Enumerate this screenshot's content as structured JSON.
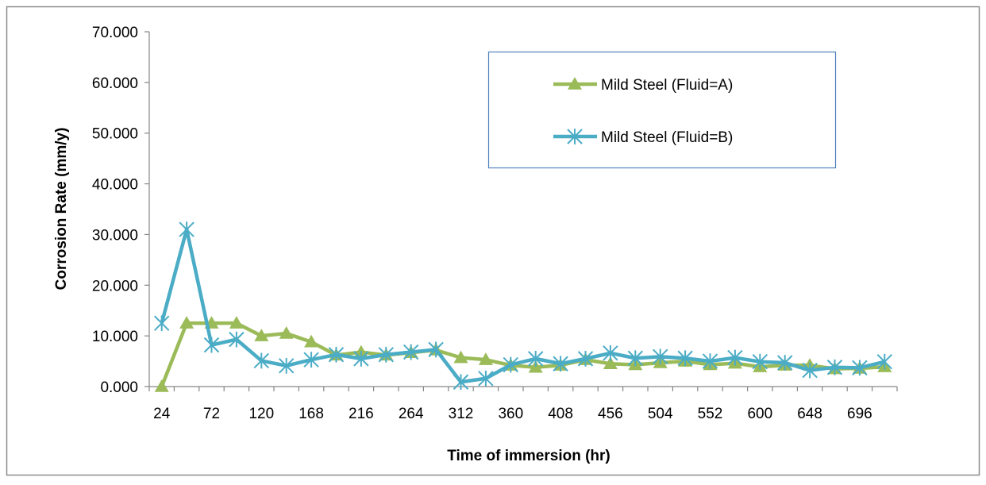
{
  "chart_data": {
    "type": "line",
    "title": "",
    "xlabel": "Time of immersion (hr)",
    "ylabel": "Corrosion Rate (mm/y)",
    "ylim": [
      0,
      70
    ],
    "y_ticks": [
      "0.000",
      "10.000",
      "20.000",
      "30.000",
      "40.000",
      "50.000",
      "60.000",
      "70.000"
    ],
    "x_tick_labels": [
      "24",
      "72",
      "120",
      "168",
      "216",
      "264",
      "312",
      "360",
      "408",
      "456",
      "504",
      "552",
      "600",
      "648",
      "696"
    ],
    "x": [
      24,
      48,
      72,
      96,
      120,
      144,
      168,
      192,
      216,
      240,
      264,
      288,
      312,
      336,
      360,
      384,
      408,
      432,
      456,
      480,
      504,
      528,
      552,
      576,
      600,
      624,
      648,
      672,
      696,
      720
    ],
    "legend_position": "top-right",
    "grid": false,
    "series": [
      {
        "name": "Mild Steel (Fluid=A)",
        "color": "#9bbb59",
        "marker": "triangle",
        "values": [
          0.0,
          12.5,
          12.5,
          12.5,
          10.0,
          10.5,
          8.8,
          6.2,
          6.8,
          6.2,
          6.7,
          7.2,
          5.7,
          5.3,
          4.2,
          3.8,
          4.2,
          5.3,
          4.5,
          4.3,
          4.7,
          5.0,
          4.3,
          4.6,
          3.9,
          4.2,
          4.2,
          3.5,
          3.6,
          3.9
        ]
      },
      {
        "name": "Mild Steel (Fluid=B)",
        "color": "#4bacc6",
        "marker": "asterisk",
        "values": [
          12.5,
          31.0,
          8.2,
          9.3,
          5.1,
          4.1,
          5.3,
          6.3,
          5.5,
          6.3,
          6.8,
          7.3,
          0.9,
          1.6,
          4.3,
          5.5,
          4.5,
          5.5,
          6.6,
          5.6,
          5.9,
          5.6,
          5.0,
          5.7,
          4.9,
          4.7,
          3.2,
          3.8,
          3.7,
          4.9
        ]
      }
    ]
  }
}
